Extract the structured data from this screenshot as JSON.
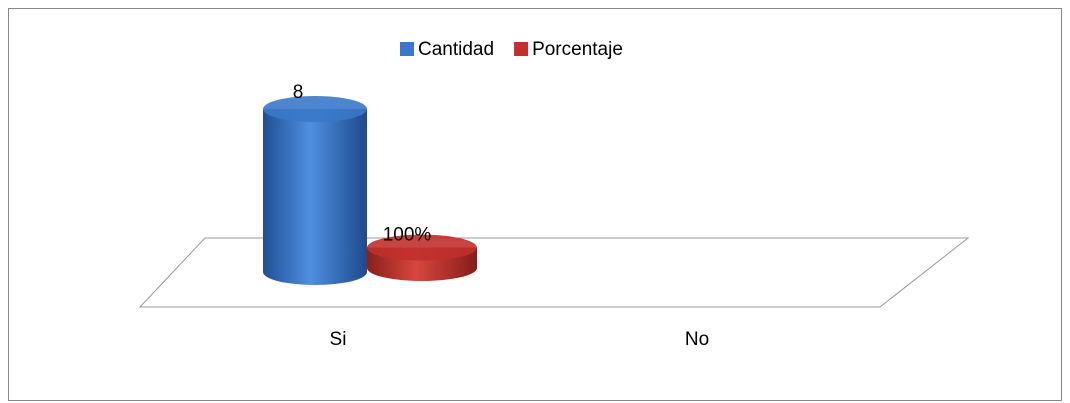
{
  "chart_data": {
    "type": "bar3d",
    "categories": [
      "Si",
      "No"
    ],
    "series": [
      {
        "name": "Cantidad",
        "color": "#3a78c9",
        "values": [
          8,
          null
        ],
        "value_labels": [
          "8",
          null
        ]
      },
      {
        "name": "Porcentaje",
        "color": "#c0302c",
        "values": [
          1,
          null
        ],
        "value_labels": [
          "100%",
          null
        ]
      }
    ],
    "legend": "top"
  }
}
